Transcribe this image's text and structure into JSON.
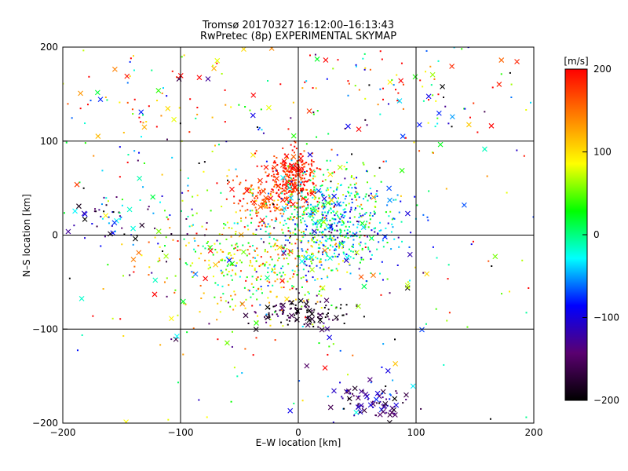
{
  "chart_data": {
    "type": "scatter",
    "title": "Tromsø 20170327 16:12:00–16:13:43",
    "subtitle": "RwPretec (8p) EXPERIMENTAL SKYMAP",
    "xlabel": "E–W location [km]",
    "ylabel": "N–S location [km]",
    "xlim": [
      -200,
      200
    ],
    "ylim": [
      -200,
      200
    ],
    "xticks": [
      "−200",
      "−100",
      "0",
      "100",
      "200"
    ],
    "yticks": [
      "200",
      "100",
      "0",
      "−100",
      "−200"
    ],
    "grid": "on (every 100 km)",
    "markers": "dot and cross (×)",
    "colorbar": {
      "label": "[m/s]",
      "range": [
        -200,
        200
      ],
      "ticks": [
        "200",
        "100",
        "0",
        "−100",
        "−200"
      ],
      "colormap": [
        "#000000",
        "#5a0070",
        "#0000ff",
        "#00ffff",
        "#00ff00",
        "#ffff00",
        "#ff8000",
        "#ff0000"
      ]
    },
    "clusters": [
      {
        "x": -5,
        "y": 65,
        "sx": 12,
        "sy": 14,
        "v": 185,
        "vs": 20,
        "n": 260,
        "cross": 0.12
      },
      {
        "x": -25,
        "y": 40,
        "sx": 18,
        "sy": 12,
        "v": 170,
        "vs": 30,
        "n": 160,
        "cross": 0.1
      },
      {
        "x": 25,
        "y": 40,
        "sx": 20,
        "sy": 22,
        "v": 20,
        "vs": 60,
        "n": 180,
        "cross": 0.08
      },
      {
        "x": 30,
        "y": 5,
        "sx": 30,
        "sy": 25,
        "v": -40,
        "vs": 50,
        "n": 420,
        "cross": 0.05
      },
      {
        "x": -35,
        "y": -25,
        "sx": 40,
        "sy": 30,
        "v": 80,
        "vs": 60,
        "n": 420,
        "cross": 0.04
      },
      {
        "x": 5,
        "y": -85,
        "sx": 22,
        "sy": 8,
        "v": -180,
        "vs": 25,
        "n": 130,
        "cross": 0.2
      },
      {
        "x": 65,
        "y": -180,
        "sx": 15,
        "sy": 10,
        "v": -140,
        "vs": 40,
        "n": 80,
        "cross": 0.5
      },
      {
        "x": -150,
        "y": 20,
        "sx": 30,
        "sy": 20,
        "v": -90,
        "vs": 90,
        "n": 70,
        "cross": 0.3
      },
      {
        "x": 100,
        "y": 150,
        "sx": 60,
        "sy": 35,
        "v": 80,
        "vs": 130,
        "n": 90,
        "cross": 0.25
      },
      {
        "x": -110,
        "y": 150,
        "sx": 55,
        "sy": 35,
        "v": 100,
        "vs": 110,
        "n": 90,
        "cross": 0.25
      },
      {
        "x": 0,
        "y": 0,
        "sx": 130,
        "sy": 120,
        "v": 30,
        "vs": 130,
        "n": 420,
        "cross": 0.18
      }
    ]
  }
}
